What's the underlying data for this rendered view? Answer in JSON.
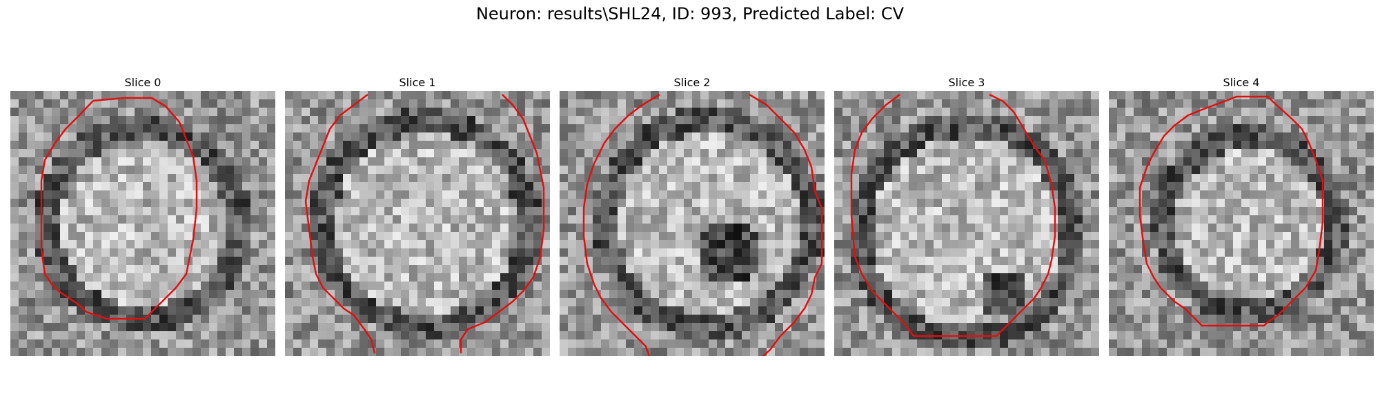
{
  "figure": {
    "title": "Neuron: results\\SHL24, ID: 993, Predicted Label: CV"
  },
  "colors": {
    "contour": "#e01010"
  },
  "slices": [
    {
      "title": "Slice 0"
    },
    {
      "title": "Slice 1"
    },
    {
      "title": "Slice 2"
    },
    {
      "title": "Slice 3"
    },
    {
      "title": "Slice 4"
    }
  ]
}
